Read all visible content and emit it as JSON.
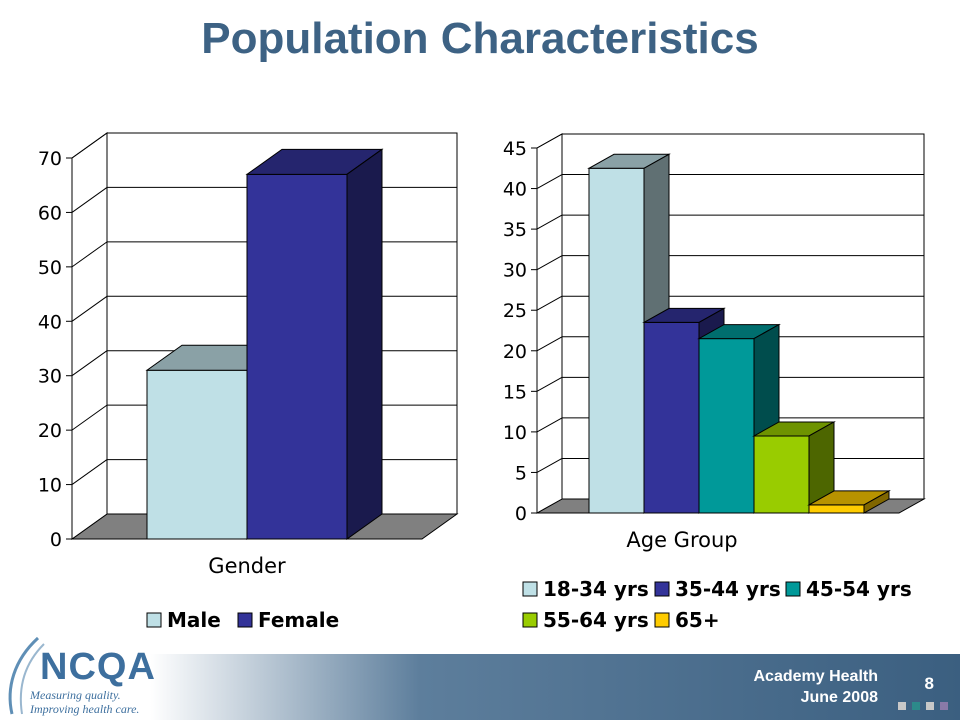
{
  "slide": {
    "title": "Population Characteristics"
  },
  "footer": {
    "line1": "Academy Health",
    "line2": "June 2008",
    "page": "8"
  },
  "logo": {
    "name": "NCQA",
    "tagline1": "Measuring quality.",
    "tagline2": "Improving health care."
  },
  "colors": {
    "male": "#bfe0e6",
    "female": "#333399",
    "age_18_34": "#bfe0e6",
    "age_35_44": "#333399",
    "age_45_54": "#009999",
    "age_55_64": "#99cc00",
    "age_65_plus": "#ffcc00",
    "title": "#3d6284",
    "footer": "#3b5f80"
  },
  "chart_data": [
    {
      "type": "bar",
      "xlabel": "Gender",
      "ylim": [
        0,
        70
      ],
      "yticks": [
        0,
        10,
        20,
        30,
        40,
        50,
        60,
        70
      ],
      "series": [
        {
          "name": "Male",
          "values": [
            31
          ]
        },
        {
          "name": "Female",
          "values": [
            67
          ]
        }
      ],
      "legend": [
        "Male",
        "Female"
      ],
      "legend_position": "bottom",
      "grid": true
    },
    {
      "type": "bar",
      "xlabel": "Age Group",
      "ylim": [
        0,
        45
      ],
      "yticks": [
        0,
        5,
        10,
        15,
        20,
        25,
        30,
        35,
        40,
        45
      ],
      "series": [
        {
          "name": "18-34 yrs",
          "values": [
            42.5
          ]
        },
        {
          "name": "35-44 yrs",
          "values": [
            23.5
          ]
        },
        {
          "name": "45-54 yrs",
          "values": [
            21.5
          ]
        },
        {
          "name": "55-64 yrs",
          "values": [
            9.5
          ]
        },
        {
          "name": "65+",
          "values": [
            1
          ]
        }
      ],
      "legend": [
        "18-34 yrs",
        "35-44 yrs",
        "45-54 yrs",
        "55-64 yrs",
        "65+"
      ],
      "legend_position": "bottom",
      "grid": true
    }
  ]
}
